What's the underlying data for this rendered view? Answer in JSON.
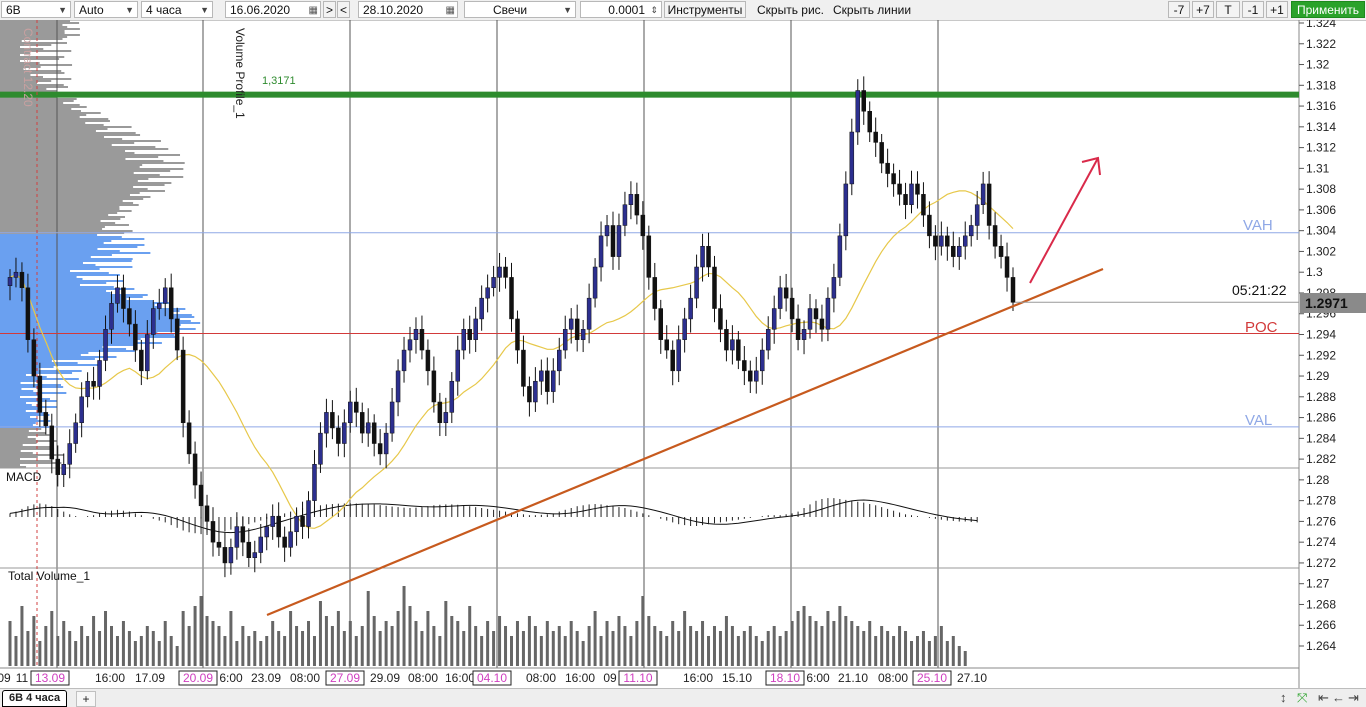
{
  "toolbar": {
    "symbol": "6B",
    "scale_mode": "Auto",
    "timeframe": "4 часа",
    "date_from": "16.06.2020",
    "nav_next": ">",
    "nav_prev": "<",
    "date_to": "28.10.2020",
    "chart_type": "Свечи",
    "tick_size": "0.0001",
    "instruments_label": "Инструменты",
    "hide_drawings_label": "Скрыть рис.",
    "hide_lines_label": "Скрыть линии",
    "btn_minus7": "-7",
    "btn_plus7": "+7",
    "btn_t": "T",
    "btn_minus1": "-1",
    "btn_plus1": "+1",
    "apply_label": "Применить"
  },
  "chart": {
    "vertical_caption": "Volume Profile_1",
    "contract_caption": "Contract 12.20",
    "level_label": "1,3171",
    "vah_label": "VAH",
    "poc_label": "POC",
    "val_label": "VAL",
    "macd_label": "MACD",
    "volume_label": "Total Volume_1",
    "timer": "05:21:22",
    "last_price": "1.2971",
    "colors": {
      "bull": "#2c2f8f",
      "bear": "#111111",
      "level_line": "#2e8b2e",
      "poc_line": "#d23a3a",
      "vah_val": "#8fa8e6",
      "trendline": "#c75a1e",
      "arrow": "#d92a4a",
      "ma": "#e7c84a",
      "profile_gray": "#9a9a9a",
      "profile_blue": "#6aa0f0"
    }
  },
  "chart_data": {
    "type": "candlestick",
    "y_ticks": [
      "1.324",
      "1.322",
      "1.32",
      "1.318",
      "1.316",
      "1.314",
      "1.312",
      "1.31",
      "1.308",
      "1.306",
      "1.304",
      "1.302",
      "1.3",
      "1.298",
      "1.296",
      "1.294",
      "1.292",
      "1.29",
      "1.288",
      "1.286",
      "1.284",
      "1.282",
      "1.28",
      "1.278",
      "1.276",
      "1.274",
      "1.272",
      "1.27",
      "1.268",
      "1.266",
      "1.264"
    ],
    "x_ticks": [
      "09",
      "11",
      "13.09",
      "16:00",
      "17.09",
      "20.09",
      "6:00",
      "23.09",
      "08:00",
      "27.09",
      "29.09",
      "08:00",
      "16:00",
      "04.10",
      "08:00",
      "16:00",
      "09",
      "11.10",
      "16:00",
      "15.10",
      "18.10",
      "6:00",
      "21.10",
      "08:00",
      "25.10",
      "27.10"
    ],
    "highlighted_dates": [
      "13.09",
      "20.09",
      "27.09",
      "04.10",
      "11.10",
      "18.10",
      "25.10"
    ],
    "ylim": [
      1.263,
      1.325
    ],
    "levels": {
      "resistance": 1.3171,
      "vah": 1.3038,
      "poc": 1.2941,
      "val": 1.2851
    },
    "last_close": 1.2971,
    "closes": [
      1.2995,
      1.3,
      1.2985,
      1.2935,
      1.29,
      1.2865,
      1.2852,
      1.282,
      1.2805,
      1.2815,
      1.2835,
      1.2855,
      1.288,
      1.2895,
      1.289,
      1.2915,
      1.2945,
      1.297,
      1.2985,
      1.2965,
      1.295,
      1.2925,
      1.2905,
      1.294,
      1.2965,
      1.297,
      1.2985,
      1.2955,
      1.2925,
      1.2855,
      1.2825,
      1.2795,
      1.2775,
      1.276,
      1.274,
      1.2735,
      1.272,
      1.2735,
      1.2755,
      1.274,
      1.2725,
      1.273,
      1.2745,
      1.2755,
      1.2765,
      1.2745,
      1.2735,
      1.275,
      1.2765,
      1.2755,
      1.278,
      1.2815,
      1.2845,
      1.2865,
      1.285,
      1.2835,
      1.2855,
      1.2875,
      1.2865,
      1.2845,
      1.2855,
      1.2835,
      1.2825,
      1.2845,
      1.2875,
      1.2905,
      1.2925,
      1.2935,
      1.2945,
      1.2925,
      1.2905,
      1.2875,
      1.2855,
      1.2865,
      1.2895,
      1.2925,
      1.2945,
      1.2935,
      1.2955,
      1.2975,
      1.2985,
      1.2995,
      1.3005,
      1.2995,
      1.2955,
      1.2925,
      1.289,
      1.2875,
      1.2895,
      1.2905,
      1.2885,
      1.2905,
      1.2925,
      1.2945,
      1.2955,
      1.2935,
      1.2945,
      1.2975,
      1.3005,
      1.3035,
      1.3045,
      1.3015,
      1.3045,
      1.3065,
      1.3075,
      1.3055,
      1.3035,
      1.2995,
      1.2965,
      1.2935,
      1.2925,
      1.2905,
      1.2935,
      1.2955,
      1.2975,
      1.3005,
      1.3025,
      1.3005,
      1.2965,
      1.2945,
      1.2925,
      1.2935,
      1.2915,
      1.2905,
      1.2895,
      1.2905,
      1.2925,
      1.2945,
      1.2965,
      1.2985,
      1.2975,
      1.2955,
      1.2935,
      1.2945,
      1.2965,
      1.2955,
      1.2945,
      1.2975,
      1.2995,
      1.3035,
      1.3085,
      1.3135,
      1.3175,
      1.3155,
      1.3135,
      1.3125,
      1.3105,
      1.3095,
      1.3085,
      1.3075,
      1.3065,
      1.3085,
      1.3075,
      1.3055,
      1.3035,
      1.3025,
      1.3035,
      1.3025,
      1.3015,
      1.3025,
      1.3035,
      1.3045,
      1.3065,
      1.3085,
      1.3045,
      1.3025,
      1.3015,
      1.2995,
      1.2971
    ]
  },
  "macd": [
    0.2,
    0.3,
    0.45,
    0.6,
    0.7,
    0.75,
    0.7,
    0.6,
    0.45,
    0.3,
    0.15,
    0.05,
    0,
    0.05,
    0.1,
    0.2,
    0.3,
    0.35,
    0.4,
    0.35,
    0.3,
    0.2,
    0.1,
    0,
    -0.1,
    -0.2,
    -0.3,
    -0.45,
    -0.6,
    -0.75,
    -0.85,
    -0.9,
    -0.95,
    -1,
    -0.95,
    -0.9,
    -0.8,
    -0.7,
    -0.6,
    -0.5,
    -0.4,
    -0.3,
    -0.2,
    -0.1,
    0,
    0.1,
    0.2,
    0.3,
    0.4,
    0.5,
    0.55,
    0.6,
    0.65,
    0.7,
    0.72,
    0.74,
    0.75,
    0.76,
    0.75,
    0.74,
    0.72,
    0.7,
    0.66,
    0.62,
    0.58,
    0.55,
    0.52,
    0.5,
    0.52,
    0.55,
    0.6,
    0.65,
    0.68,
    0.7,
    0.7,
    0.68,
    0.65,
    0.6,
    0.55,
    0.5,
    0.45,
    0.4,
    0.35,
    0.3,
    0.25,
    0.2,
    0.15,
    0.1,
    0.1,
    0.12,
    0.15,
    0.2,
    0.3,
    0.4,
    0.5,
    0.6,
    0.65,
    0.7,
    0.72,
    0.7,
    0.65,
    0.6,
    0.55,
    0.5,
    0.4,
    0.3,
    0.2,
    0.1,
    0,
    -0.1,
    -0.2,
    -0.3,
    -0.4,
    -0.45,
    -0.5,
    -0.5,
    -0.45,
    -0.4,
    -0.35,
    -0.3,
    -0.25,
    -0.2,
    -0.15,
    -0.1,
    -0.05,
    0,
    0.05,
    0.1,
    0.1,
    0.1,
    0.15,
    0.2,
    0.3,
    0.5,
    0.7,
    0.9,
    1,
    1.05,
    1.05,
    1,
    0.95,
    0.9,
    0.85,
    0.8,
    0.72,
    0.65,
    0.55,
    0.45,
    0.35,
    0.25,
    0.15,
    0.1,
    0.05,
    0,
    -0.05,
    -0.1,
    -0.15,
    -0.2,
    -0.22,
    -0.25,
    -0.25,
    -0.28,
    -0.3
  ],
  "volume": [
    0.45,
    0.3,
    0.6,
    0.35,
    0.5,
    0.25,
    0.4,
    0.55,
    0.3,
    0.45,
    0.35,
    0.25,
    0.4,
    0.3,
    0.5,
    0.35,
    0.55,
    0.4,
    0.3,
    0.45,
    0.35,
    0.25,
    0.3,
    0.4,
    0.35,
    0.25,
    0.45,
    0.3,
    0.2,
    0.55,
    0.4,
    0.6,
    0.7,
    0.5,
    0.45,
    0.4,
    0.3,
    0.55,
    0.25,
    0.4,
    0.3,
    0.35,
    0.25,
    0.3,
    0.45,
    0.35,
    0.3,
    0.55,
    0.4,
    0.35,
    0.45,
    0.3,
    0.65,
    0.5,
    0.4,
    0.55,
    0.35,
    0.45,
    0.3,
    0.4,
    0.75,
    0.5,
    0.35,
    0.45,
    0.4,
    0.55,
    0.8,
    0.6,
    0.45,
    0.35,
    0.55,
    0.4,
    0.3,
    0.65,
    0.5,
    0.45,
    0.35,
    0.6,
    0.4,
    0.3,
    0.45,
    0.35,
    0.5,
    0.4,
    0.3,
    0.45,
    0.35,
    0.5,
    0.4,
    0.3,
    0.45,
    0.35,
    0.4,
    0.3,
    0.45,
    0.35,
    0.25,
    0.4,
    0.55,
    0.3,
    0.45,
    0.35,
    0.5,
    0.4,
    0.3,
    0.45,
    0.7,
    0.5,
    0.4,
    0.35,
    0.3,
    0.45,
    0.35,
    0.55,
    0.4,
    0.35,
    0.45,
    0.3,
    0.4,
    0.35,
    0.5,
    0.4,
    0.3,
    0.35,
    0.4,
    0.3,
    0.25,
    0.35,
    0.4,
    0.3,
    0.35,
    0.45,
    0.55,
    0.6,
    0.5,
    0.45,
    0.4,
    0.55,
    0.45,
    0.6,
    0.5,
    0.45,
    0.4,
    0.35,
    0.45,
    0.3,
    0.4,
    0.35,
    0.3,
    0.4,
    0.35,
    0.25,
    0.3,
    0.35,
    0.25,
    0.3,
    0.4,
    0.25,
    0.3,
    0.2,
    0.15
  ]
}
